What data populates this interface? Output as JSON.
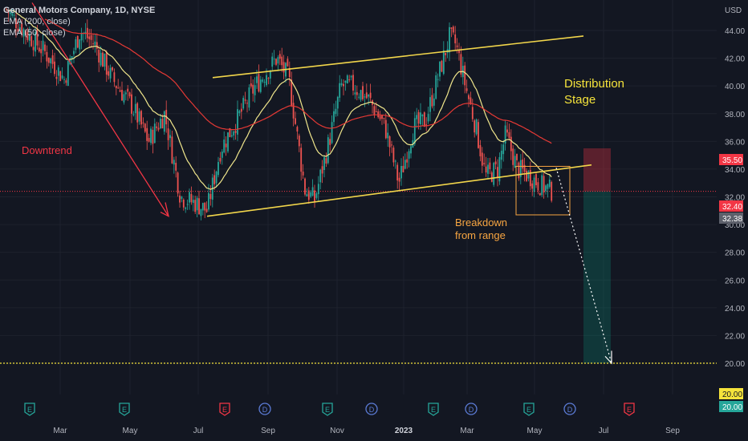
{
  "legend": {
    "symbol": "General Motors Company, 1D, NYSE",
    "indicators": [
      "EMA (200, close)",
      "EMA (50, close)"
    ]
  },
  "currency": "USD",
  "colors": {
    "background": "#131722",
    "up": "#26a69a",
    "down": "#ef5350",
    "ema200": "#e53935",
    "ema50": "#f0e68c",
    "trendline": "#f2d64b",
    "annotation_red": "#f23645",
    "annotation_orange": "#f7a541",
    "annotation_yellow": "#f5e33b"
  },
  "annotations": {
    "downtrend": "Downtrend",
    "distribution_line1": "Distribution",
    "distribution_line2": "Stage",
    "breakdown_line1": "Breakdown",
    "breakdown_line2": "from range"
  },
  "price_labels": {
    "stop": "35.50",
    "last": "32.40",
    "prev_close": "32.38",
    "target": "20.00",
    "target2": "20.00"
  },
  "event_icons": [
    "E",
    "E",
    "E",
    "D",
    "E",
    "D",
    "E",
    "D",
    "E",
    "D",
    "E"
  ],
  "chart_data": {
    "type": "candlestick",
    "title": "General Motors Company, 1D, NYSE",
    "y_axis": {
      "unit": "USD",
      "ylim": [
        18.8,
        45.6
      ],
      "ticks": [
        20,
        22,
        24,
        26,
        28,
        30,
        32,
        34,
        36,
        38,
        40,
        42,
        44
      ]
    },
    "x_axis": {
      "ticks": [
        "Mar",
        "May",
        "Jul",
        "Sep",
        "Nov",
        "2023",
        "Mar",
        "May",
        "Jul",
        "Sep"
      ]
    },
    "series": [
      {
        "name": "EMA (200, close)",
        "color": "#e53935"
      },
      {
        "name": "EMA (50, close)",
        "color": "#f0e68c"
      }
    ],
    "price_approx": {
      "x": [
        "Feb",
        "Mar",
        "Apr",
        "May",
        "Jun",
        "Jul",
        "Aug",
        "Sep",
        "Oct",
        "Nov",
        "Dec",
        "Jan",
        "Feb",
        "Mar",
        "Apr",
        "May"
      ],
      "close": [
        45.5,
        41.5,
        40.0,
        36.5,
        33.0,
        31.0,
        37.5,
        41.5,
        33.0,
        40.0,
        37.0,
        34.5,
        43.5,
        33.5,
        35.0,
        32.4
      ]
    },
    "trade_setup": {
      "entry": 32.4,
      "stop": 35.5,
      "target": 20.0
    },
    "grid": true
  }
}
